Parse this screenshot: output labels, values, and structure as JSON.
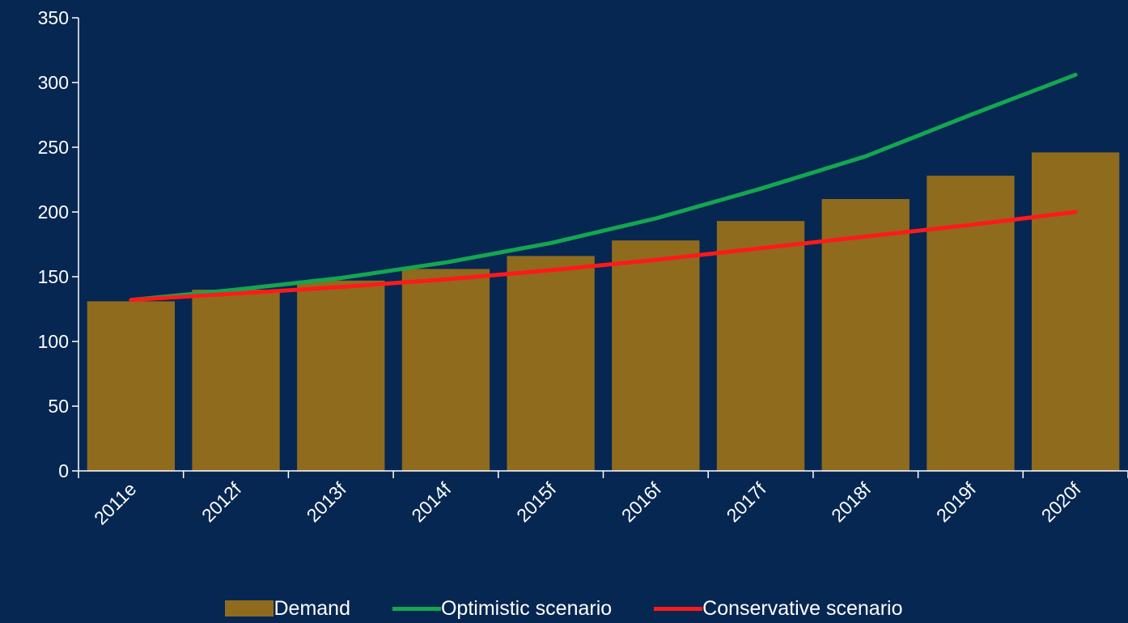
{
  "chart_data": {
    "type": "bar",
    "categories": [
      "2011e",
      "2012f",
      "2013f",
      "2014f",
      "2015f",
      "2016f",
      "2017f",
      "2018f",
      "2019f",
      "2020f"
    ],
    "series": [
      {
        "name": "Demand",
        "type": "bar",
        "color": "#8f6b1e",
        "values": [
          131,
          140,
          147,
          156,
          166,
          178,
          193,
          210,
          228,
          246
        ]
      },
      {
        "name": "Optimistic scenario",
        "type": "line",
        "color": "#14a650",
        "values": [
          132,
          140,
          149,
          161,
          176,
          195,
          218,
          243,
          275,
          306
        ]
      },
      {
        "name": "Conservative scenario",
        "type": "line",
        "color": "#ff1a1a",
        "values": [
          132,
          137,
          142,
          148,
          155,
          163,
          172,
          181,
          190,
          200
        ]
      }
    ],
    "ylim": [
      0,
      350
    ],
    "yticks": [
      0,
      50,
      100,
      150,
      200,
      250,
      300,
      350
    ],
    "xlabel": "",
    "ylabel": "",
    "title": "",
    "grid": false,
    "legend_position": "bottom"
  }
}
